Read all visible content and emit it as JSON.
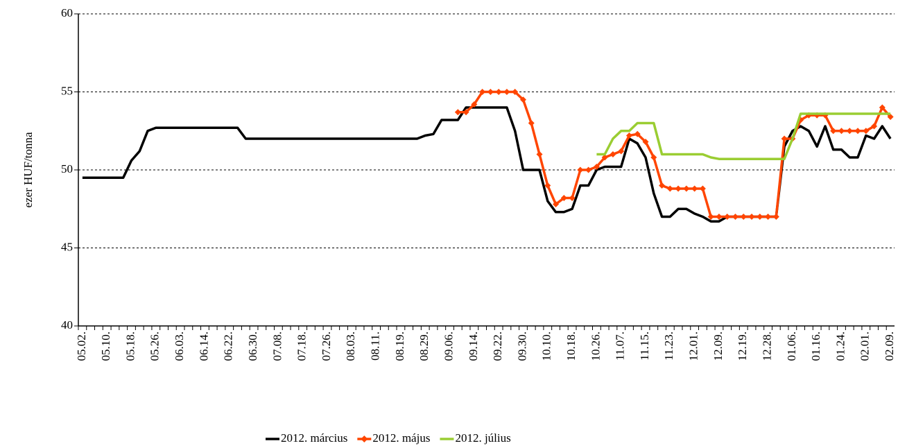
{
  "chart_data": {
    "type": "line",
    "y_label": "ezer HUF/tonna",
    "ylim": [
      40,
      60
    ],
    "yticks": [
      40,
      45,
      50,
      55,
      60
    ],
    "grid": true,
    "categories": [
      "05.02.",
      null,
      null,
      "05.10.",
      null,
      null,
      "05.18.",
      null,
      null,
      "05.26.",
      null,
      null,
      "06.03.",
      null,
      null,
      "06.14.",
      null,
      null,
      "06.22.",
      null,
      null,
      "06.30.",
      null,
      null,
      "07.08.",
      null,
      null,
      "07.18.",
      null,
      null,
      "07.26.",
      null,
      null,
      "08.03.",
      null,
      null,
      "08.11.",
      null,
      null,
      "08.19.",
      null,
      null,
      "08.29.",
      null,
      null,
      "09.06.",
      null,
      null,
      "09.14.",
      null,
      null,
      "09.22.",
      null,
      null,
      "09.30.",
      null,
      null,
      "10.10.",
      null,
      null,
      "10.18.",
      null,
      null,
      "10.26.",
      null,
      null,
      "11.07.",
      null,
      null,
      "11.15.",
      null,
      null,
      "11.23.",
      null,
      null,
      "12.01.",
      null,
      null,
      "12.09.",
      null,
      null,
      "12.19.",
      null,
      null,
      "12.28.",
      null,
      null,
      "01.06.",
      null,
      null,
      "01.16.",
      null,
      null,
      "01.24.",
      null,
      null,
      "02.01.",
      null,
      null,
      "02.09."
    ],
    "series": [
      {
        "name": "2012. március",
        "color": "#000000",
        "marker": false,
        "values": [
          49.5,
          49.5,
          49.5,
          49.5,
          49.5,
          49.5,
          50.6,
          51.2,
          52.5,
          52.7,
          52.7,
          52.7,
          52.7,
          52.7,
          52.7,
          52.7,
          52.7,
          52.7,
          52.7,
          52.7,
          52,
          52,
          52,
          52,
          52,
          52,
          52,
          52,
          52,
          52,
          52,
          52,
          52,
          52,
          52,
          52,
          52,
          52,
          52,
          52,
          52,
          52,
          52.2,
          52.3,
          53.2,
          53.2,
          53.2,
          54,
          54,
          54,
          54,
          54,
          54,
          52.5,
          50,
          50,
          50,
          48,
          47.3,
          47.3,
          47.5,
          49,
          49,
          50,
          50.2,
          50.2,
          50.2,
          52,
          51.7,
          50.8,
          48.5,
          47,
          47,
          47.5,
          47.5,
          47.2,
          47,
          46.7,
          46.7,
          47,
          47,
          47,
          47,
          47,
          47,
          47,
          51.5,
          52.5,
          52.8,
          52.5,
          51.5,
          52.8,
          51.3,
          51.3,
          50.8,
          50.8,
          52.2,
          52,
          52.8,
          52
        ]
      },
      {
        "name": "2012. május",
        "color": "#ff4500",
        "marker": true,
        "values": [
          null,
          null,
          null,
          null,
          null,
          null,
          null,
          null,
          null,
          null,
          null,
          null,
          null,
          null,
          null,
          null,
          null,
          null,
          null,
          null,
          null,
          null,
          null,
          null,
          null,
          null,
          null,
          null,
          null,
          null,
          null,
          null,
          null,
          null,
          null,
          null,
          null,
          null,
          null,
          null,
          null,
          null,
          null,
          null,
          null,
          null,
          53.7,
          53.7,
          54.2,
          55,
          55,
          55,
          55,
          55,
          54.5,
          53,
          51,
          49,
          47.8,
          48.2,
          48.2,
          50,
          50,
          50.2,
          50.8,
          51,
          51.2,
          52.2,
          52.3,
          51.8,
          50.8,
          49,
          48.8,
          48.8,
          48.8,
          48.8,
          48.8,
          47,
          47,
          47,
          47,
          47,
          47,
          47,
          47,
          47,
          52,
          52,
          53.2,
          53.5,
          53.5,
          53.5,
          52.5,
          52.5,
          52.5,
          52.5,
          52.5,
          52.8,
          54,
          53.4
        ]
      },
      {
        "name": "2012. július",
        "color": "#9acd32",
        "marker": false,
        "values": [
          null,
          null,
          null,
          null,
          null,
          null,
          null,
          null,
          null,
          null,
          null,
          null,
          null,
          null,
          null,
          null,
          null,
          null,
          null,
          null,
          null,
          null,
          null,
          null,
          null,
          null,
          null,
          null,
          null,
          null,
          null,
          null,
          null,
          null,
          null,
          null,
          null,
          null,
          null,
          null,
          null,
          null,
          null,
          null,
          null,
          null,
          null,
          null,
          null,
          null,
          null,
          null,
          null,
          null,
          null,
          null,
          null,
          null,
          null,
          null,
          null,
          null,
          null,
          51,
          51,
          52,
          52.5,
          52.5,
          53,
          53,
          53,
          51,
          51,
          51,
          51,
          51,
          51,
          50.8,
          50.7,
          50.7,
          50.7,
          50.7,
          50.7,
          50.7,
          50.7,
          50.7,
          50.7,
          52,
          53.6,
          53.6,
          53.6,
          53.6,
          53.6,
          53.6,
          53.6,
          53.6,
          53.6,
          53.6,
          53.6,
          53.6
        ]
      }
    ]
  }
}
